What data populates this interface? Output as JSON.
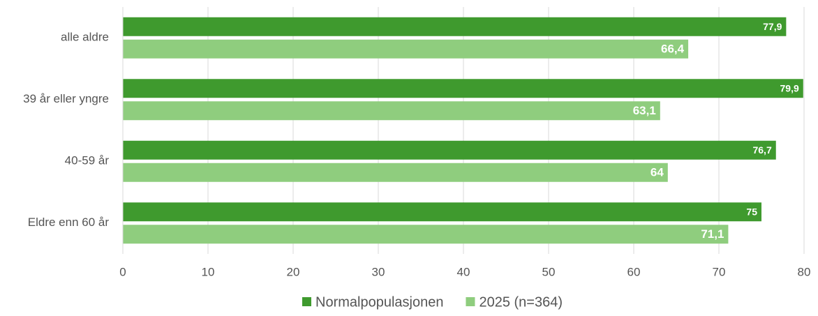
{
  "chart_data": {
    "type": "bar",
    "orientation": "horizontal",
    "categories": [
      "alle aldre",
      "39 år eller yngre",
      "40-59 år",
      "Eldre enn 60 år"
    ],
    "series": [
      {
        "name": "Normalpopulasjonen",
        "color": "#3f9a2e",
        "values": [
          77.9,
          79.9,
          76.7,
          75
        ],
        "value_labels": [
          "77,9",
          "79,9",
          "76,7",
          "75"
        ]
      },
      {
        "name": "2025 (n=364)",
        "color": "#8fcd7e",
        "values": [
          66.4,
          63.1,
          64,
          71.1
        ],
        "value_labels": [
          "66,4",
          "63,1",
          "64",
          "71,1"
        ]
      }
    ],
    "xlim": [
      0,
      80
    ],
    "xticks": [
      0,
      10,
      20,
      30,
      40,
      50,
      60,
      70,
      80
    ],
    "grid": true,
    "legend": "bottom"
  }
}
